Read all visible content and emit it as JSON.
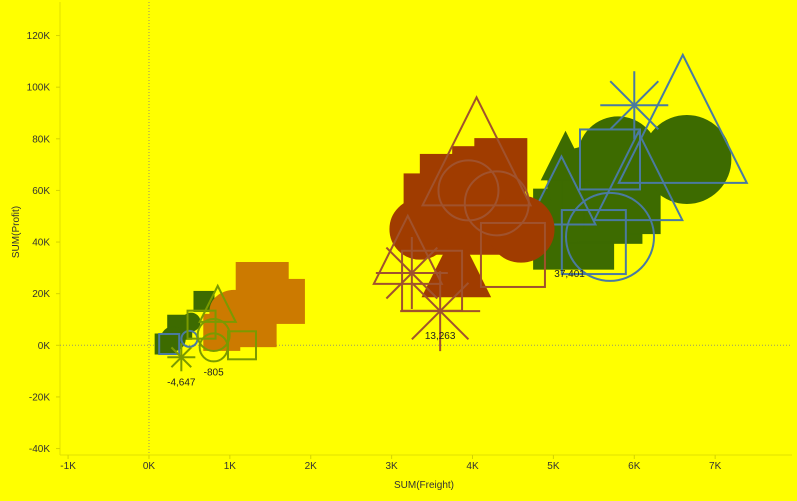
{
  "chart_data": {
    "type": "scatter",
    "title": "",
    "xlabel": "SUM(Freight)",
    "ylabel": "SUM(Profit)",
    "xlim": [
      -1100,
      7950
    ],
    "ylim": [
      -42500,
      133000
    ],
    "x_ticks": [
      {
        "value": -1000,
        "label": "-1K"
      },
      {
        "value": 0,
        "label": "0K"
      },
      {
        "value": 1000,
        "label": "1K"
      },
      {
        "value": 2000,
        "label": "2K"
      },
      {
        "value": 3000,
        "label": "3K"
      },
      {
        "value": 4000,
        "label": "4K"
      },
      {
        "value": 5000,
        "label": "5K"
      },
      {
        "value": 6000,
        "label": "6K"
      },
      {
        "value": 7000,
        "label": "7K"
      }
    ],
    "y_ticks": [
      {
        "value": -40000,
        "label": "-40K"
      },
      {
        "value": -20000,
        "label": "-20K"
      },
      {
        "value": 0,
        "label": "0K"
      },
      {
        "value": 20000,
        "label": "20K"
      },
      {
        "value": 40000,
        "label": "40K"
      },
      {
        "value": 60000,
        "label": "60K"
      },
      {
        "value": 80000,
        "label": "80K"
      },
      {
        "value": 100000,
        "label": "100K"
      },
      {
        "value": 120000,
        "label": "120K"
      }
    ],
    "zero_lines": true,
    "grid": false,
    "legend": "none",
    "colors": {
      "background": "#ffff00",
      "green": "#3d6b00",
      "orange": "#cc7a00",
      "rust": "#a03c00",
      "blue_outline": "#4a7aa0",
      "brown_outline": "#a0522d",
      "olive": "#7a9a00"
    },
    "series": [
      {
        "color": "green",
        "fill": true,
        "points": [
          {
            "x": 5250,
            "y": 45000,
            "shape": "square",
            "size": 40
          },
          {
            "x": 5400,
            "y": 62000,
            "shape": "circle",
            "size": 38
          },
          {
            "x": 5600,
            "y": 55000,
            "shape": "square",
            "size": 40
          },
          {
            "x": 5850,
            "y": 58000,
            "shape": "square",
            "size": 38
          },
          {
            "x": 5800,
            "y": 73000,
            "shape": "circle",
            "size": 40
          },
          {
            "x": 6650,
            "y": 72000,
            "shape": "circle",
            "size": 44
          },
          {
            "x": 5150,
            "y": 72000,
            "shape": "triangle",
            "size": 24
          },
          {
            "x": 5600,
            "y": 48000,
            "shape": "triangle",
            "size": 24
          },
          {
            "x": 380,
            "y": 7000,
            "shape": "square",
            "size": 12
          },
          {
            "x": 300,
            "y": 2500,
            "shape": "circle",
            "size": 12
          },
          {
            "x": 200,
            "y": 500,
            "shape": "square",
            "size": 10
          },
          {
            "x": 520,
            "y": 9000,
            "shape": "circle",
            "size": 9
          },
          {
            "x": 680,
            "y": 17000,
            "shape": "square",
            "size": 10
          }
        ]
      },
      {
        "color": "blue_outline",
        "fill": false,
        "points": [
          {
            "x": 6600,
            "y": 84000,
            "shape": "triangle",
            "size": 64
          },
          {
            "x": 6050,
            "y": 63000,
            "shape": "triangle",
            "size": 44
          },
          {
            "x": 5700,
            "y": 72000,
            "shape": "square",
            "size": 30
          },
          {
            "x": 5500,
            "y": 40000,
            "shape": "square",
            "size": 32
          },
          {
            "x": 5100,
            "y": 58000,
            "shape": "triangle",
            "size": 34
          },
          {
            "x": 6000,
            "y": 93000,
            "shape": "asterisk",
            "size": 34
          },
          {
            "x": 5700,
            "y": 42000,
            "shape": "circle",
            "size": 44
          },
          {
            "x": 250,
            "y": 500,
            "shape": "square",
            "size": 10
          },
          {
            "x": 500,
            "y": 2500,
            "shape": "circle",
            "size": 8
          }
        ]
      },
      {
        "color": "rust",
        "fill": true,
        "points": [
          {
            "x": 3800,
            "y": 60000,
            "shape": "square",
            "size": 36
          },
          {
            "x": 4200,
            "y": 63000,
            "shape": "square",
            "size": 36
          },
          {
            "x": 4000,
            "y": 50000,
            "shape": "square",
            "size": 38
          },
          {
            "x": 4600,
            "y": 45000,
            "shape": "circle",
            "size": 33
          },
          {
            "x": 3350,
            "y": 45000,
            "shape": "circle",
            "size": 30
          },
          {
            "x": 3550,
            "y": 54000,
            "shape": "square",
            "size": 32
          },
          {
            "x": 3800,
            "y": 30000,
            "shape": "triangle",
            "size": 34
          },
          {
            "x": 4350,
            "y": 70000,
            "shape": "square",
            "size": 26
          }
        ]
      },
      {
        "color": "brown_outline",
        "fill": false,
        "points": [
          {
            "x": 4050,
            "y": 72000,
            "shape": "triangle",
            "size": 54
          },
          {
            "x": 3200,
            "y": 35000,
            "shape": "triangle",
            "size": 34
          },
          {
            "x": 3500,
            "y": 25000,
            "shape": "square",
            "size": 30
          },
          {
            "x": 4500,
            "y": 35000,
            "shape": "square",
            "size": 32
          },
          {
            "x": 4300,
            "y": 55000,
            "shape": "circle",
            "size": 32
          },
          {
            "x": 3600,
            "y": 13263,
            "shape": "asterisk",
            "size": 40
          },
          {
            "x": 3250,
            "y": 28000,
            "shape": "asterisk",
            "size": 36
          },
          {
            "x": 3950,
            "y": 60000,
            "shape": "circle",
            "size": 30
          }
        ]
      },
      {
        "color": "orange",
        "fill": true,
        "points": [
          {
            "x": 1400,
            "y": 22000,
            "shape": "square",
            "size": 26
          },
          {
            "x": 1650,
            "y": 17000,
            "shape": "square",
            "size": 22
          },
          {
            "x": 1050,
            "y": 12000,
            "shape": "circle",
            "size": 24
          },
          {
            "x": 1300,
            "y": 8000,
            "shape": "square",
            "size": 22
          },
          {
            "x": 900,
            "y": 5000,
            "shape": "square",
            "size": 18
          },
          {
            "x": 1000,
            "y": 13000,
            "shape": "circle",
            "size": 20
          }
        ]
      },
      {
        "color": "olive",
        "fill": false,
        "points": [
          {
            "x": 800,
            "y": 4000,
            "shape": "circle",
            "size": 16
          },
          {
            "x": 650,
            "y": 8000,
            "shape": "square",
            "size": 14
          },
          {
            "x": 850,
            "y": 15000,
            "shape": "triangle",
            "size": 18
          },
          {
            "x": 400,
            "y": -4647,
            "shape": "asterisk",
            "size": 14
          },
          {
            "x": 800,
            "y": -805,
            "shape": "circle",
            "size": 14
          },
          {
            "x": 1150,
            "y": 0,
            "shape": "square",
            "size": 14
          }
        ]
      }
    ],
    "annotations": [
      {
        "x": 400,
        "y": -4647,
        "label": "-4,647"
      },
      {
        "x": 800,
        "y": -805,
        "label": "-805"
      },
      {
        "x": 3600,
        "y": 13263,
        "label": "13,263"
      },
      {
        "x": 5200,
        "y": 37401,
        "label": "37,401"
      }
    ]
  }
}
